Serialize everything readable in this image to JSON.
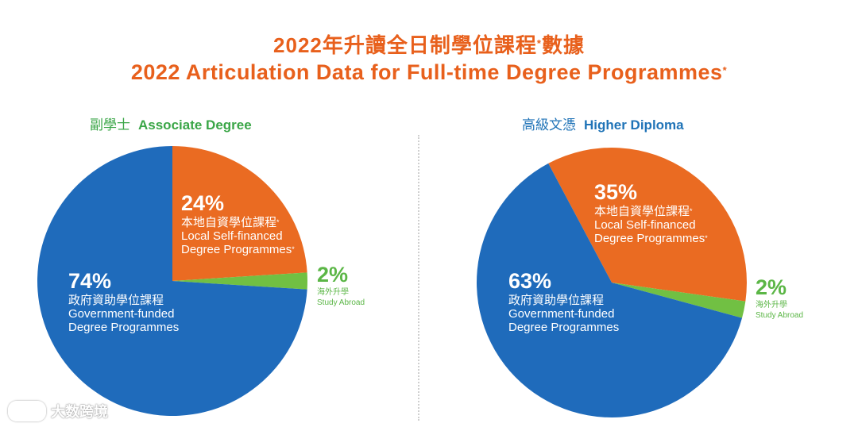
{
  "title": {
    "zh": "2022年升讀全日制學位課程",
    "zh_suffix": "數據",
    "en": "2022 Articulation Data for Full-time Degree Programmes",
    "asterisk": "*"
  },
  "watermark": "大数跨境",
  "chart_data": [
    {
      "type": "pie",
      "title_zh": "副學士",
      "title_en": "Associate Degree",
      "slices": [
        {
          "pct_label": "24%",
          "value": 24,
          "label_zh": "本地自資學位課程",
          "label_en_1": "Local Self-financed",
          "label_en_2": "Degree Programmes",
          "color": "#ea6b22"
        },
        {
          "pct_label": "2%",
          "value": 2,
          "label_zh": "海外升學",
          "label_en": "Study Abroad",
          "color": "#71c043"
        },
        {
          "pct_label": "74%",
          "value": 74,
          "label_zh": "政府資助學位課程",
          "label_en_1": "Government-funded",
          "label_en_2": "Degree Programmes",
          "color": "#1f6bbb"
        }
      ]
    },
    {
      "type": "pie",
      "title_zh": "高級文憑",
      "title_en": "Higher Diploma",
      "slices": [
        {
          "pct_label": "35%",
          "value": 35,
          "label_zh": "本地自資學位課程",
          "label_en_1": "Local Self-financed",
          "label_en_2": "Degree Programmes",
          "color": "#ea6b22"
        },
        {
          "pct_label": "2%",
          "value": 2,
          "label_zh": "海外升學",
          "label_en": "Study Abroad",
          "color": "#71c043"
        },
        {
          "pct_label": "63%",
          "value": 63,
          "label_zh": "政府資助學位課程",
          "label_en_1": "Government-funded",
          "label_en_2": "Degree Programmes",
          "color": "#1f6bbb"
        }
      ]
    }
  ]
}
